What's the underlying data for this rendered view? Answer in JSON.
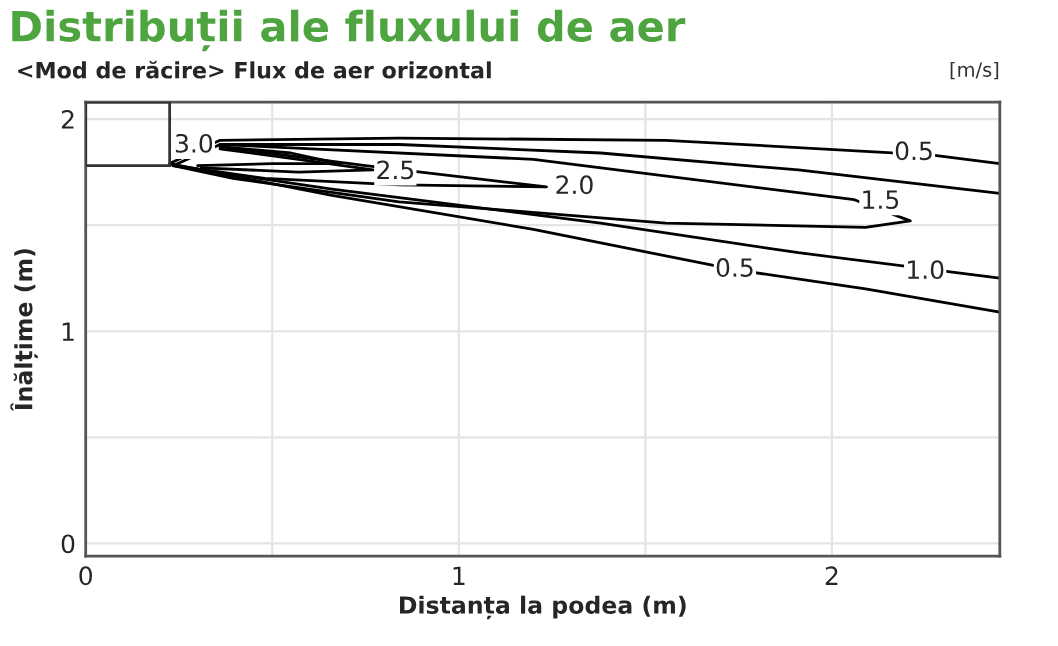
{
  "chart_data": {
    "type": "line",
    "title": "Distribuții ale fluxului de aer",
    "subtitle": "<Mod de răcire> Flux de aer orizontal",
    "xlabel": "Distanța la podea (m)",
    "ylabel": "Înălțime (m)",
    "xlim": [
      0,
      2.45
    ],
    "ylim": [
      -0.06,
      2.08
    ],
    "xticks": [
      0,
      {
        "value": 0.5,
        "label": null
      },
      1,
      {
        "value": 1.5,
        "label": null
      },
      2
    ],
    "yticks": [
      0,
      {
        "value": 0.5,
        "label": null
      },
      1,
      {
        "value": 1.5,
        "label": null
      },
      2
    ],
    "grid": true,
    "legend": false,
    "marker": "none",
    "line_style": "solid",
    "series": [
      {
        "color": "#000000",
        "x": [
          2.45,
          2.27,
          1.555,
          0.84,
          0.36,
          0.225,
          0.66,
          1.2,
          1.74,
          2.09,
          2.45
        ],
        "values": [
          1.79,
          1.83,
          1.9,
          1.91,
          1.9,
          1.79,
          1.64,
          1.48,
          1.29,
          1.2,
          1.09
        ]
      },
      {
        "color": "#000000",
        "x": [
          2.45,
          1.91,
          1.38,
          0.84,
          0.36,
          0.234,
          0.66,
          1.38,
          1.91,
          2.45
        ],
        "values": [
          1.65,
          1.76,
          1.84,
          1.88,
          1.88,
          1.78,
          1.67,
          1.51,
          1.37,
          1.25
        ]
      },
      {
        "color": "#000000",
        "x": [
          0.36,
          1.2,
          2.06,
          2.21,
          2.09,
          1.555,
          0.84,
          0.395,
          0.234
        ],
        "values": [
          1.88,
          1.81,
          1.62,
          1.52,
          1.49,
          1.51,
          1.61,
          1.72,
          1.78
        ]
      },
      {
        "color": "#000000",
        "x": [
          0.36,
          0.75,
          1.235,
          0.84,
          0.48,
          0.24
        ],
        "values": [
          1.87,
          1.78,
          1.68,
          1.69,
          1.72,
          1.78
        ]
      },
      {
        "color": "#000000",
        "x": [
          0.36,
          0.57,
          0.77,
          0.57,
          0.31
        ],
        "values": [
          1.86,
          1.81,
          1.76,
          1.75,
          1.77
        ]
      },
      {
        "color": "#000000",
        "x": [
          0.36,
          0.55,
          0.68,
          0.5,
          0.3
        ],
        "values": [
          1.87,
          1.84,
          1.79,
          1.79,
          1.78
        ]
      }
    ],
    "annotations": [
      {
        "text": "3.0",
        "x": 0.29,
        "y": 1.875
      },
      {
        "text": "2.5",
        "x": 0.83,
        "y": 1.75
      },
      {
        "text": "2.0",
        "x": 1.31,
        "y": 1.68
      },
      {
        "text": "1.5",
        "x": 2.13,
        "y": 1.61
      },
      {
        "text": "0.5",
        "x": 2.22,
        "y": 1.84
      },
      {
        "text": "1.0",
        "x": 2.25,
        "y": 1.28
      },
      {
        "text": "0.5",
        "x": 1.74,
        "y": 1.29
      },
      "[m/s]"
    ]
  }
}
